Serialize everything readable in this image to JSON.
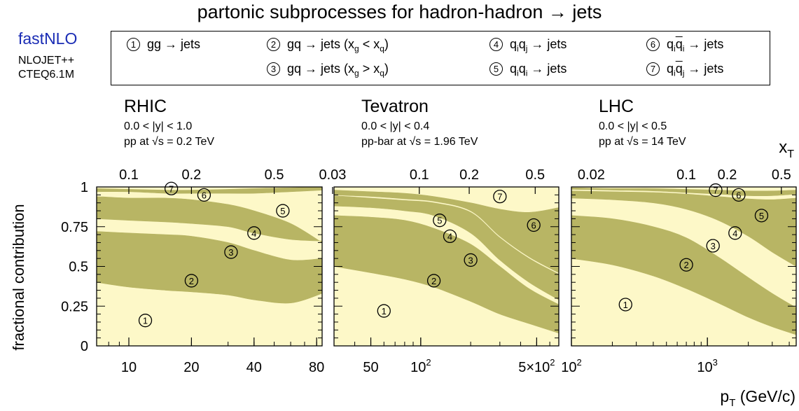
{
  "title": "partonic subprocesses for  hadron-hadron → jets",
  "brand": "fastNLO",
  "info": [
    "NLOJET++",
    "CTEQ6.1M"
  ],
  "legend": [
    {
      "num": "1",
      "label": "gg → jets"
    },
    {
      "num": "2",
      "label": "gq → jets   (xg < xq)"
    },
    {
      "num": "3",
      "label": "gq → jets   (xg > xq)"
    },
    {
      "num": "4",
      "label": "qiqj → jets"
    },
    {
      "num": "5",
      "label": "qiqi → jets"
    },
    {
      "num": "6",
      "label": "qiq̄i → jets"
    },
    {
      "num": "7",
      "label": "qiq̄j → jets"
    }
  ],
  "colors": {
    "band": "#b8b564",
    "gap": "#fdf8c8",
    "frame": "#000000",
    "brand": "#1b2db5"
  },
  "chart_data": {
    "type": "area",
    "ylabel": "fractional contribution",
    "xlabel": "pT  (GeV/c)",
    "xlabel_top": "xT",
    "y_ticks": [
      "0",
      "0.25",
      "0.5",
      "0.75",
      "1"
    ],
    "ylim": [
      0,
      1
    ],
    "panels": [
      {
        "name": "RHIC",
        "rapidity": "0.0 < |y| < 1.0",
        "beam": "pp at √s = 0.2 TeV",
        "x_scale": "log",
        "xlim": [
          7,
          85
        ],
        "x_ticks": [
          {
            "v": 10,
            "label": "10"
          },
          {
            "v": 20,
            "label": "20"
          },
          {
            "v": 40,
            "label": "40"
          },
          {
            "v": 80,
            "label": "80"
          }
        ],
        "xt_ticks": [
          {
            "v": 10,
            "label": "0.1"
          },
          {
            "v": 20,
            "label": "0.2"
          },
          {
            "v": 50,
            "label": "0.5"
          }
        ],
        "x": [
          7,
          10,
          15,
          20,
          30,
          40,
          60,
          85
        ],
        "boundaries": [
          [
            0.4,
            0.37,
            0.35,
            0.34,
            0.32,
            0.29,
            0.27,
            0.33
          ],
          [
            0.72,
            0.71,
            0.7,
            0.69,
            0.65,
            0.6,
            0.54,
            0.55
          ],
          [
            0.8,
            0.79,
            0.78,
            0.77,
            0.75,
            0.71,
            0.67,
            0.66
          ],
          [
            0.94,
            0.93,
            0.93,
            0.92,
            0.89,
            0.85,
            0.77,
            0.65
          ],
          [
            0.97,
            0.97,
            0.96,
            0.96,
            0.96,
            0.96,
            0.97,
            0.98
          ],
          [
            0.99,
            0.985,
            0.98,
            0.98,
            0.985,
            0.99,
            0.995,
            1.0
          ]
        ],
        "markers": [
          {
            "num": "1",
            "x": 12,
            "y": 0.16
          },
          {
            "num": "2",
            "x": 20,
            "y": 0.41
          },
          {
            "num": "3",
            "x": 31,
            "y": 0.59
          },
          {
            "num": "4",
            "x": 40,
            "y": 0.71
          },
          {
            "num": "5",
            "x": 55,
            "y": 0.85
          },
          {
            "num": "6",
            "x": 23,
            "y": 0.95
          },
          {
            "num": "7",
            "x": 16,
            "y": 0.99
          }
        ]
      },
      {
        "name": "Tevatron",
        "rapidity": "0.0 < |y| < 0.4",
        "beam": "pp-bar at √s = 1.96 TeV",
        "x_scale": "log",
        "xlim": [
          30,
          680
        ],
        "x_ticks": [
          {
            "v": 50,
            "label": "50"
          },
          {
            "v": 100,
            "label": "10^2"
          },
          {
            "v": 500,
            "label": "5×10^2"
          }
        ],
        "xt_ticks": [
          {
            "v": 29.4,
            "label": "0.03"
          },
          {
            "v": 98,
            "label": "0.1"
          },
          {
            "v": 196,
            "label": "0.2"
          },
          {
            "v": 490,
            "label": "0.5"
          }
        ],
        "x": [
          30,
          50,
          80,
          120,
          200,
          300,
          450,
          680
        ],
        "boundaries": [
          [
            0.5,
            0.46,
            0.42,
            0.37,
            0.28,
            0.2,
            0.14,
            0.08
          ],
          [
            0.82,
            0.81,
            0.79,
            0.74,
            0.64,
            0.5,
            0.36,
            0.26
          ],
          [
            0.88,
            0.87,
            0.85,
            0.82,
            0.71,
            0.54,
            0.4,
            0.29
          ],
          [
            0.945,
            0.93,
            0.915,
            0.9,
            0.84,
            0.68,
            0.55,
            0.45
          ],
          [
            0.95,
            0.94,
            0.925,
            0.91,
            0.85,
            0.69,
            0.56,
            0.46
          ],
          [
            0.98,
            0.97,
            0.96,
            0.94,
            0.9,
            0.86,
            0.84,
            0.87
          ]
        ],
        "markers": [
          {
            "num": "1",
            "x": 60,
            "y": 0.22
          },
          {
            "num": "2",
            "x": 120,
            "y": 0.41
          },
          {
            "num": "3",
            "x": 200,
            "y": 0.54
          },
          {
            "num": "4",
            "x": 150,
            "y": 0.69
          },
          {
            "num": "5",
            "x": 130,
            "y": 0.79
          },
          {
            "num": "6",
            "x": 480,
            "y": 0.76
          },
          {
            "num": "7",
            "x": 300,
            "y": 0.94
          }
        ]
      },
      {
        "name": "LHC",
        "rapidity": "0.0 < |y| < 0.5",
        "beam": "pp at √s = 14 TeV",
        "x_scale": "log",
        "xlim": [
          100,
          4500
        ],
        "x_ticks": [
          {
            "v": 100,
            "label": "10^2"
          },
          {
            "v": 1000,
            "label": "10^3"
          }
        ],
        "xt_ticks": [
          {
            "v": 140,
            "label": "0.02"
          },
          {
            "v": 700,
            "label": "0.1"
          },
          {
            "v": 1400,
            "label": "0.2"
          },
          {
            "v": 3500,
            "label": "0.5"
          }
        ],
        "x": [
          100,
          200,
          400,
          700,
          1200,
          2000,
          3000,
          4500
        ],
        "boundaries": [
          [
            0.55,
            0.51,
            0.44,
            0.36,
            0.27,
            0.18,
            0.12,
            0.07
          ],
          [
            0.82,
            0.8,
            0.75,
            0.68,
            0.56,
            0.43,
            0.33,
            0.24
          ],
          [
            0.93,
            0.92,
            0.9,
            0.86,
            0.79,
            0.69,
            0.59,
            0.5
          ],
          [
            0.975,
            0.97,
            0.965,
            0.955,
            0.94,
            0.925,
            0.92,
            0.93
          ],
          [
            0.985,
            0.98,
            0.975,
            0.965,
            0.955,
            0.945,
            0.945,
            0.955
          ],
          [
            0.995,
            0.99,
            0.99,
            0.985,
            0.98,
            0.975,
            0.975,
            0.98
          ]
        ],
        "markers": [
          {
            "num": "1",
            "x": 250,
            "y": 0.26
          },
          {
            "num": "2",
            "x": 700,
            "y": 0.51
          },
          {
            "num": "3",
            "x": 1100,
            "y": 0.63
          },
          {
            "num": "4",
            "x": 1600,
            "y": 0.71
          },
          {
            "num": "5",
            "x": 2500,
            "y": 0.82
          },
          {
            "num": "6",
            "x": 1700,
            "y": 0.95
          },
          {
            "num": "7",
            "x": 1150,
            "y": 0.98
          }
        ]
      }
    ]
  }
}
